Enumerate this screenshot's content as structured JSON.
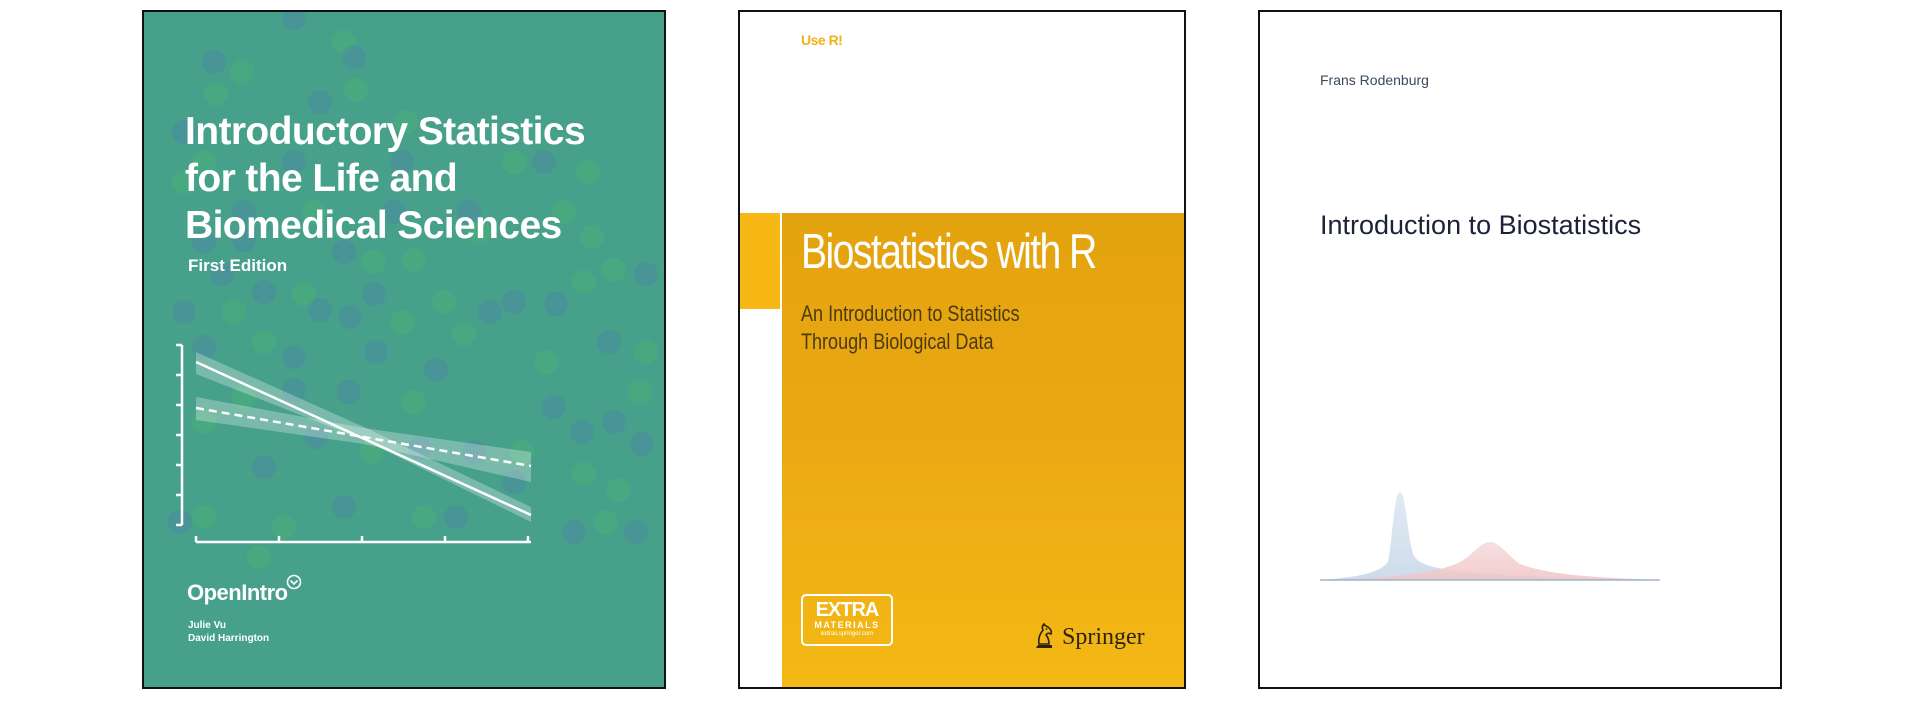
{
  "covers": [
    {
      "title_lines": [
        "Introductory Statistics",
        "for the Life and",
        "Biomedical Sciences"
      ],
      "edition": "First Edition",
      "publisher": "OpenIntro",
      "authors": [
        "Julie Vu",
        "David Harrington"
      ],
      "colors": {
        "background": "#46a08a",
        "text": "#ffffff"
      }
    },
    {
      "series": "Use R!",
      "title": "Biostatistics with R",
      "subtitle_lines": [
        "An Introduction to Statistics",
        "Through Biological Data"
      ],
      "badge": {
        "line1": "EXTRA",
        "line2": "MATERIALS",
        "line3": "extras.springer.com"
      },
      "publisher": "Springer",
      "colors": {
        "band": "#eaa813",
        "series": "#f0b21a"
      }
    },
    {
      "author": "Frans Rodenburg",
      "title": "Introduction to Biostatistics",
      "colors": {
        "curve_left": "#c8d8e8",
        "curve_right": "#f0c4c4"
      }
    }
  ]
}
